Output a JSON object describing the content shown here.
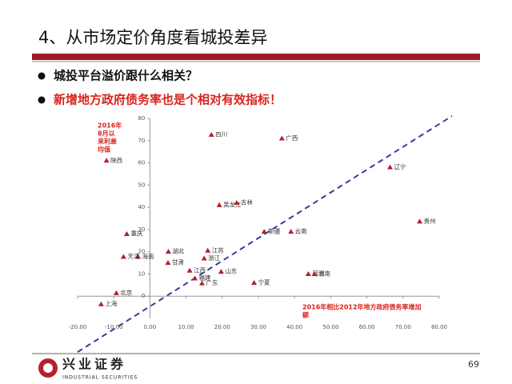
{
  "header": {
    "title": "4、从市场定价角度看城投差异"
  },
  "bullets": [
    "城投平台溢价跟什么相关？",
    "新增地方政府债务率也是个相对有效指标！"
  ],
  "chart_data": {
    "type": "scatter",
    "color": "#b3202a",
    "y_annotation": [
      "2016年",
      "8月以",
      "来利差",
      "均值"
    ],
    "x_annotation": [
      "2016年相比2012年地方政府债务率增加",
      "额"
    ],
    "point_labels": [
      "四川",
      "广西",
      "陕西",
      "辽宁",
      "黑龙江",
      "吉林",
      "贵州",
      "新疆",
      "云南",
      "重庆",
      "湖北",
      "江苏",
      "浙江",
      "海南",
      "天津",
      "甘肃",
      "江西",
      "山东",
      "福建",
      "广东",
      "宁夏",
      "河北",
      "湖南",
      "北京",
      "上海"
    ],
    "x": [
      17.0,
      36.5,
      -12.0,
      66.4,
      19.2,
      24.0,
      74.6,
      31.6,
      39.0,
      -6.4,
      5.1,
      16.0,
      15.0,
      -3.3,
      -7.3,
      5.0,
      11.0,
      19.7,
      12.4,
      14.4,
      28.8,
      43.8,
      45.5,
      -9.3,
      -13.5
    ],
    "values": [
      72.6,
      71.0,
      61.0,
      58.0,
      41.0,
      42.0,
      33.6,
      29.0,
      29.0,
      28.0,
      20.0,
      20.5,
      17.0,
      17.7,
      17.7,
      15.0,
      11.5,
      11.0,
      8.0,
      5.8,
      6.0,
      10.0,
      10.0,
      1.4,
      -3.6
    ],
    "xlim": [
      -20,
      80
    ],
    "xticks": [
      {
        "value": -20,
        "label": "-20.00"
      },
      {
        "value": -10,
        "label": "-10.00"
      },
      {
        "value": 0,
        "label": "0.00"
      },
      {
        "value": 10,
        "label": "10.00"
      },
      {
        "value": 20,
        "label": "20.00"
      },
      {
        "value": 30,
        "label": "30.00"
      },
      {
        "value": 40,
        "label": "40.00"
      },
      {
        "value": 50,
        "label": "50.00"
      },
      {
        "value": 60,
        "label": "60.00"
      },
      {
        "value": 70,
        "label": "70.00"
      },
      {
        "value": 80,
        "label": "80.00"
      }
    ],
    "ylim": [
      -10,
      80
    ],
    "yticks": [
      0,
      10,
      20,
      30,
      40,
      50,
      60,
      70,
      80
    ]
  },
  "footer": {
    "brand": "兴业证券",
    "brand_en": "INDUSTRIAL SECURITIES",
    "page": "69"
  }
}
